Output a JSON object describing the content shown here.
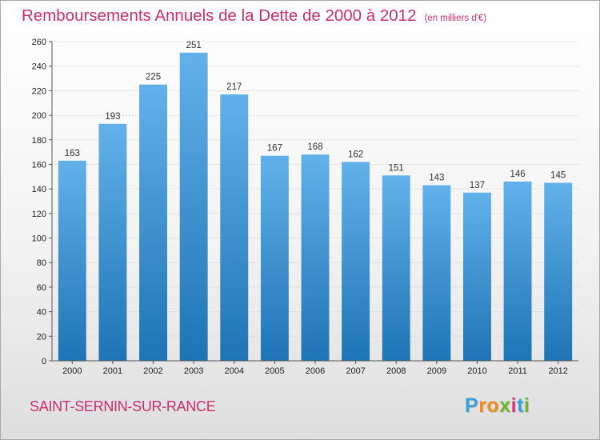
{
  "header": {
    "title": "Remboursements Annuels de la Dette de 2000 à 2012",
    "subtitle": "(en milliers d'€)"
  },
  "footer": {
    "town": "SAINT-SERNIN-SUR-RANCE",
    "logo_letters": [
      "P",
      "r",
      "o",
      "x",
      "i",
      "t",
      "i"
    ],
    "logo_colors": [
      "#3aa0dc",
      "#f08a1c",
      "#f08a1c",
      "#6cb52d",
      "#d23a78",
      "#3aa0dc",
      "#6cb52d"
    ]
  },
  "chart_data": {
    "type": "bar",
    "categories": [
      "2000",
      "2001",
      "2002",
      "2003",
      "2004",
      "2005",
      "2006",
      "2007",
      "2008",
      "2009",
      "2010",
      "2011",
      "2012"
    ],
    "values": [
      163,
      193,
      225,
      251,
      217,
      167,
      168,
      162,
      151,
      143,
      137,
      146,
      145
    ],
    "title": "Remboursements Annuels de la Dette de 2000 à 2012",
    "subtitle": "(en milliers d'€)",
    "xlabel": "",
    "ylabel": "",
    "ylim": [
      0,
      260
    ],
    "ytick_step": 20,
    "grid": true,
    "bar_color_top": "#62b1ea",
    "bar_color_bottom": "#1e74b4"
  }
}
